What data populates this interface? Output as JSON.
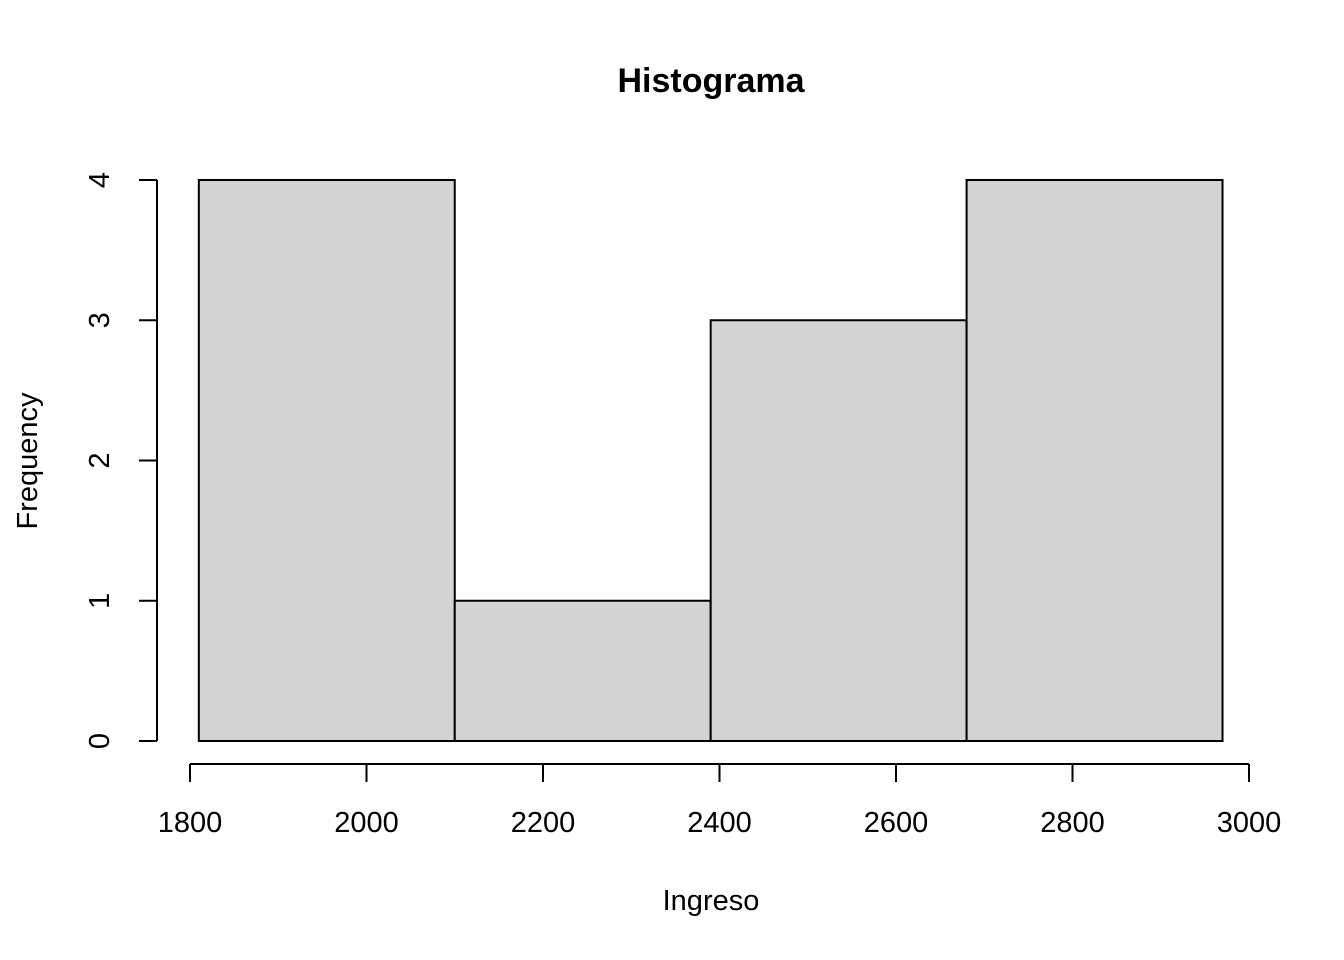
{
  "chart_data": {
    "type": "bar",
    "title": "Histograma",
    "xlabel": "Ingreso",
    "ylabel": "Frequency",
    "bins": [
      {
        "start": 1810,
        "end": 2100,
        "count": 4
      },
      {
        "start": 2100,
        "end": 2390,
        "count": 1
      },
      {
        "start": 2390,
        "end": 2680,
        "count": 3
      },
      {
        "start": 2680,
        "end": 2970,
        "count": 4
      }
    ],
    "x_ticks": [
      1800,
      2000,
      2200,
      2400,
      2600,
      2800,
      3000
    ],
    "y_ticks": [
      0,
      1,
      2,
      3,
      4
    ],
    "xlim": [
      1800,
      3000
    ],
    "ylim": [
      0,
      4
    ],
    "grid": false,
    "legend": "none",
    "bar_color": "#d3d3d3",
    "edge_color": "#000000"
  }
}
